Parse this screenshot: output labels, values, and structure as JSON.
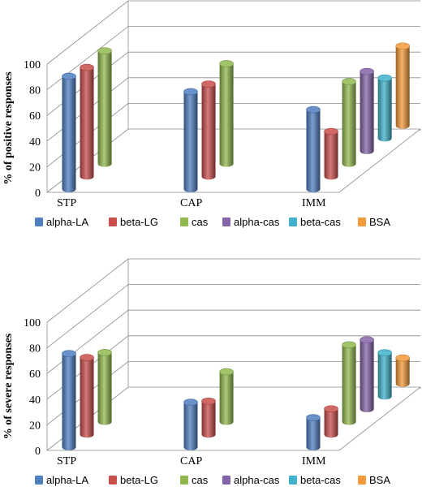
{
  "chart_data": [
    {
      "type": "bar",
      "ylabel": "% of positive responses",
      "ylim": [
        0,
        100
      ],
      "yticks": [
        "0",
        "20",
        "40",
        "60",
        "80",
        "100"
      ],
      "categories": [
        "STP",
        "CAP",
        "IMM"
      ],
      "legend_position": "bottom",
      "series": [
        {
          "name": "alpha-LA",
          "color": "#4f7ec1",
          "values": [
            88,
            76,
            62
          ]
        },
        {
          "name": "beta-LG",
          "color": "#c84d4b",
          "values": [
            85,
            72,
            35
          ]
        },
        {
          "name": "cas",
          "color": "#90b84e",
          "values": [
            88,
            78,
            64
          ]
        },
        {
          "name": "alpha-cas",
          "color": "#8464a8",
          "values": [
            null,
            null,
            62
          ]
        },
        {
          "name": "beta-cas",
          "color": "#3fb1cb",
          "values": [
            null,
            null,
            47
          ]
        },
        {
          "name": "BSA",
          "color": "#f39a3a",
          "values": [
            null,
            null,
            62
          ]
        }
      ]
    },
    {
      "type": "bar",
      "ylabel": "% of severe responses",
      "ylim": [
        0,
        100
      ],
      "yticks": [
        "0",
        "20",
        "40",
        "60",
        "80",
        "100"
      ],
      "categories": [
        "STP",
        "CAP",
        "IMM"
      ],
      "legend_position": "bottom",
      "series": [
        {
          "name": "alpha-LA",
          "color": "#4f7ec1",
          "values": [
            73,
            35,
            23
          ]
        },
        {
          "name": "beta-LG",
          "color": "#c84d4b",
          "values": [
            60,
            26,
            20
          ]
        },
        {
          "name": "cas",
          "color": "#90b84e",
          "values": [
            54,
            39,
            60
          ]
        },
        {
          "name": "alpha-cas",
          "color": "#8464a8",
          "values": [
            null,
            null,
            54
          ]
        },
        {
          "name": "beta-cas",
          "color": "#3fb1cb",
          "values": [
            null,
            null,
            34
          ]
        },
        {
          "name": "BSA",
          "color": "#f39a3a",
          "values": [
            null,
            null,
            20
          ]
        }
      ]
    }
  ]
}
